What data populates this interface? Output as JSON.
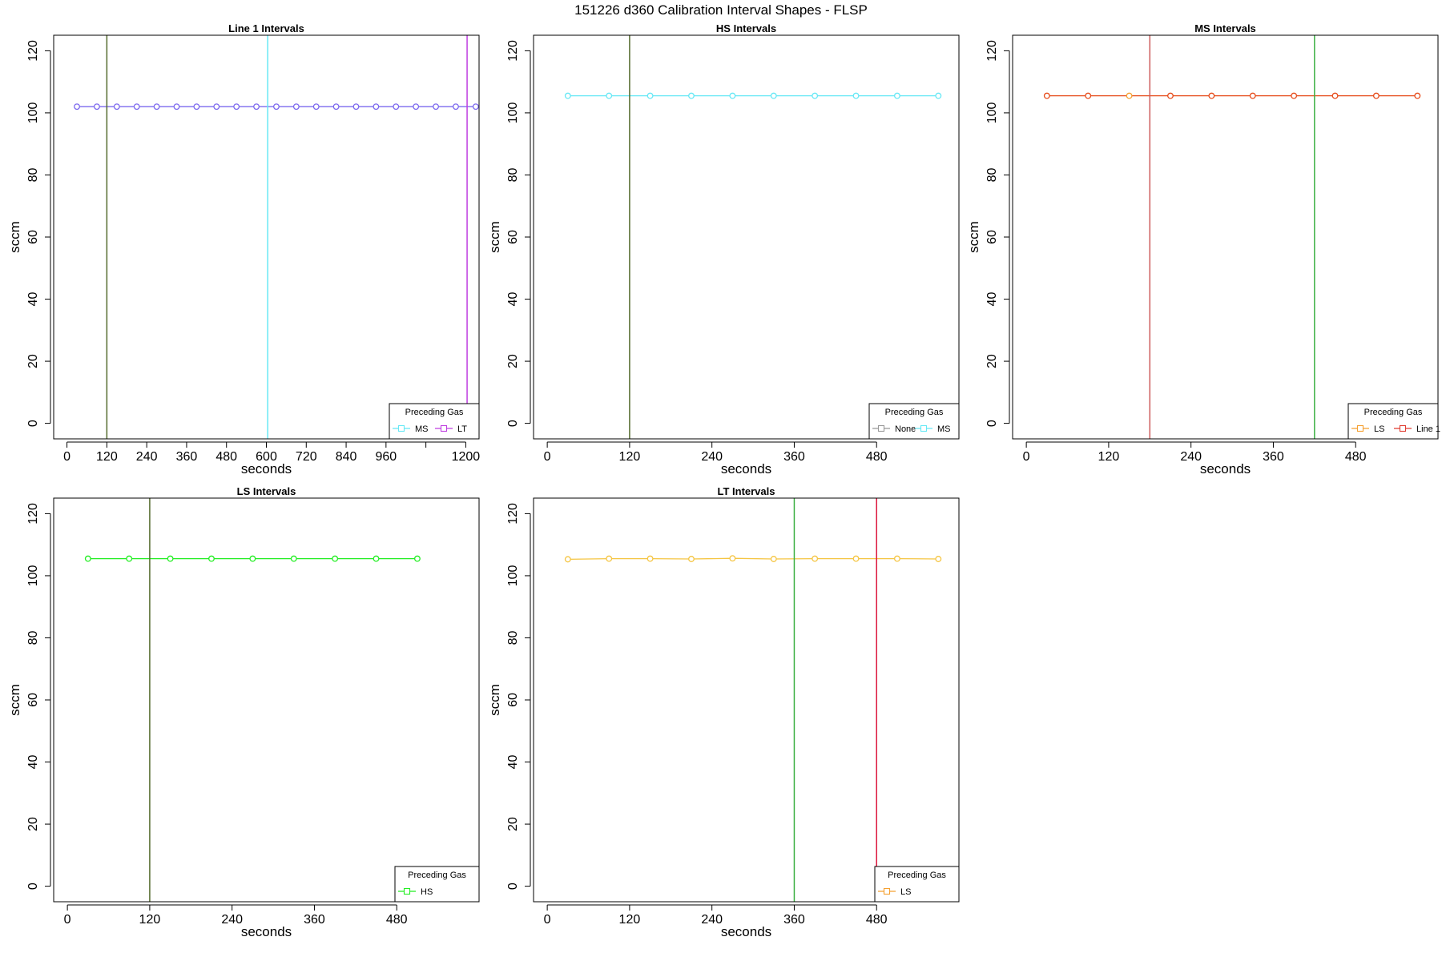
{
  "figure": {
    "title": "151226   d360   Calibration Interval Shapes - FLSP"
  },
  "chart_data": [
    {
      "type": "line",
      "title": "Line 1 Intervals",
      "xlabel": "seconds",
      "ylabel": "sccm",
      "xlim": [
        -40,
        1240
      ],
      "ylim": [
        -5,
        125
      ],
      "xticks": [
        0,
        120,
        240,
        360,
        480,
        600,
        720,
        840,
        960,
        1080,
        1200
      ],
      "xtick_labels": [
        "0",
        "120",
        "240",
        "360",
        "480",
        "600",
        "720",
        "840",
        "960",
        "",
        "1200"
      ],
      "yticks": [
        0,
        20,
        40,
        60,
        80,
        100,
        120
      ],
      "series": [
        {
          "color": "#7b68ee",
          "x": [
            30,
            90,
            150,
            210,
            270,
            330,
            390,
            450,
            510,
            570,
            630,
            690,
            750,
            810,
            870,
            930,
            990,
            1050,
            1110,
            1170,
            1230
          ],
          "y": [
            102,
            102,
            102,
            102,
            102,
            102,
            102,
            102,
            102,
            102,
            102,
            102,
            102,
            102,
            102,
            102,
            102,
            102,
            102,
            102,
            102
          ]
        }
      ],
      "vlines": [
        {
          "x": 120,
          "color": "#556b2f"
        },
        {
          "x": 604,
          "color": "#66e8f5"
        },
        {
          "x": 1204,
          "color": "#bf3fe0"
        }
      ],
      "legend": {
        "title": "Preceding Gas",
        "placement": "bottom-right",
        "entries": [
          {
            "label": "MS",
            "color": "#66e8f5"
          },
          {
            "label": "LT",
            "color": "#bf3fe0"
          }
        ]
      }
    },
    {
      "type": "line",
      "title": "HS Intervals",
      "xlabel": "seconds",
      "ylabel": "sccm",
      "xlim": [
        -20,
        600
      ],
      "ylim": [
        -5,
        125
      ],
      "xticks": [
        0,
        120,
        240,
        360,
        480
      ],
      "xtick_labels": [
        "0",
        "120",
        "240",
        "360",
        "480"
      ],
      "yticks": [
        0,
        20,
        40,
        60,
        80,
        100,
        120
      ],
      "series": [
        {
          "color": "#66e8f5",
          "x": [
            30,
            90,
            150,
            210,
            270,
            330,
            390,
            450,
            510,
            570
          ],
          "y": [
            105.5,
            105.5,
            105.5,
            105.5,
            105.5,
            105.5,
            105.5,
            105.5,
            105.5,
            105.5
          ]
        }
      ],
      "vlines": [
        {
          "x": 120,
          "color": "#556b2f"
        }
      ],
      "legend": {
        "title": "Preceding Gas",
        "placement": "bottom-right",
        "entries": [
          {
            "label": "None",
            "color": "#999999"
          },
          {
            "label": "MS",
            "color": "#66e8f5"
          }
        ]
      }
    },
    {
      "type": "line",
      "title": "MS Intervals",
      "xlabel": "seconds",
      "ylabel": "sccm",
      "xlim": [
        -20,
        600
      ],
      "ylim": [
        -5,
        125
      ],
      "xticks": [
        0,
        120,
        240,
        360,
        480
      ],
      "xtick_labels": [
        "0",
        "120",
        "240",
        "360",
        "480"
      ],
      "yticks": [
        0,
        20,
        40,
        60,
        80,
        100,
        120
      ],
      "series": [
        {
          "color": "#e64a19",
          "x": [
            30,
            90,
            150,
            210,
            270,
            330,
            390,
            450,
            510,
            570
          ],
          "y": [
            105.5,
            105.5,
            105.5,
            105.5,
            105.5,
            105.5,
            105.5,
            105.5,
            105.5,
            105.5
          ],
          "point_colors": [
            "#e64a19",
            "#e64a19",
            "#f5a030",
            "#e64a19",
            "#e64a19",
            "#e64a19",
            "#e64a19",
            "#e64a19",
            "#e64a19",
            "#e64a19"
          ]
        }
      ],
      "vlines": [
        {
          "x": 180,
          "color": "#cd5c5c"
        },
        {
          "x": 420,
          "color": "#3cb043"
        }
      ],
      "legend": {
        "title": "Preceding Gas",
        "placement": "bottom-right",
        "entries": [
          {
            "label": "LS",
            "color": "#f5a030"
          },
          {
            "label": "Line 1",
            "color": "#e03c31"
          }
        ]
      }
    },
    {
      "type": "line",
      "title": "LS Intervals",
      "xlabel": "seconds",
      "ylabel": "sccm",
      "xlim": [
        -20,
        600
      ],
      "ylim": [
        -5,
        125
      ],
      "xticks": [
        0,
        120,
        240,
        360,
        480
      ],
      "xtick_labels": [
        "0",
        "120",
        "240",
        "360",
        "480"
      ],
      "yticks": [
        0,
        20,
        40,
        60,
        80,
        100,
        120
      ],
      "series": [
        {
          "color": "#22ee22",
          "x": [
            30,
            90,
            150,
            210,
            270,
            330,
            390,
            450,
            510
          ],
          "y": [
            105.5,
            105.5,
            105.5,
            105.5,
            105.5,
            105.5,
            105.5,
            105.5,
            105.5
          ]
        }
      ],
      "vlines": [
        {
          "x": 120,
          "color": "#556b2f"
        }
      ],
      "legend": {
        "title": "Preceding Gas",
        "placement": "bottom-right",
        "entries": [
          {
            "label": "HS",
            "color": "#22ee22"
          }
        ]
      }
    },
    {
      "type": "line",
      "title": "LT Intervals",
      "xlabel": "seconds",
      "ylabel": "sccm",
      "xlim": [
        -20,
        600
      ],
      "ylim": [
        -5,
        125
      ],
      "xticks": [
        0,
        120,
        240,
        360,
        480
      ],
      "xtick_labels": [
        "0",
        "120",
        "240",
        "360",
        "480"
      ],
      "yticks": [
        0,
        20,
        40,
        60,
        80,
        100,
        120
      ],
      "series": [
        {
          "color": "#f5c542",
          "x": [
            30,
            90,
            150,
            210,
            270,
            330,
            390,
            450,
            510,
            570
          ],
          "y": [
            105.3,
            105.5,
            105.5,
            105.4,
            105.6,
            105.4,
            105.5,
            105.5,
            105.5,
            105.4
          ]
        }
      ],
      "vlines": [
        {
          "x": 360,
          "color": "#3cb043"
        },
        {
          "x": 480,
          "color": "#dc143c"
        }
      ],
      "legend": {
        "title": "Preceding Gas",
        "placement": "bottom-right",
        "entries": [
          {
            "label": "LS",
            "color": "#f5a030"
          }
        ]
      }
    }
  ]
}
